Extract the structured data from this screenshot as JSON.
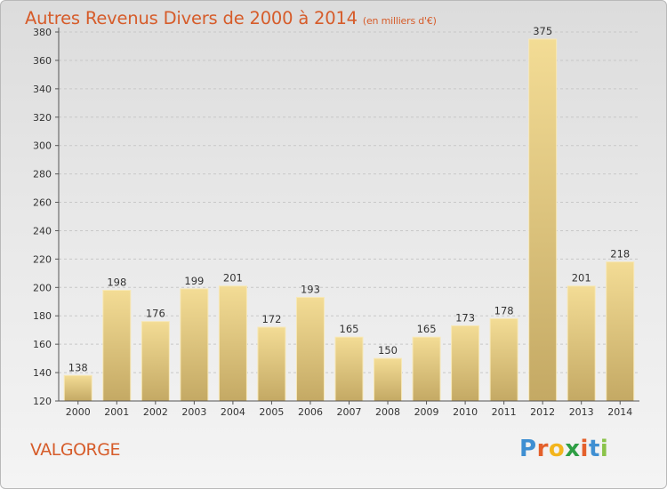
{
  "chart_data": {
    "type": "bar",
    "title": "Autres Revenus Divers de 2000 à 2014",
    "subtitle": "(en milliers d'€)",
    "categories": [
      "2000",
      "2001",
      "2002",
      "2003",
      "2004",
      "2005",
      "2006",
      "2007",
      "2008",
      "2009",
      "2010",
      "2011",
      "2012",
      "2013",
      "2014"
    ],
    "values": [
      138,
      198,
      176,
      199,
      201,
      172,
      193,
      165,
      150,
      165,
      173,
      178,
      375,
      201,
      218
    ],
    "ylim": [
      120,
      380
    ],
    "yticks": [
      120,
      140,
      160,
      180,
      200,
      220,
      240,
      260,
      280,
      300,
      320,
      340,
      360,
      380
    ],
    "grid": "horizontal dashed",
    "colors": {
      "bar_light": "#f3dc95",
      "bar_dark": "#c4a964",
      "title": "#d65c2a",
      "grid": "#c8c8c8"
    }
  },
  "footer": {
    "place": "VALGORGE"
  },
  "logo": {
    "letters": [
      "P",
      "r",
      "o",
      "x",
      "i",
      "t",
      "i"
    ],
    "colors": [
      "#3f8fd2",
      "#e4602b",
      "#f3b51d",
      "#2e9e44",
      "#e4602b",
      "#3f8fd2",
      "#8bc34a"
    ]
  }
}
